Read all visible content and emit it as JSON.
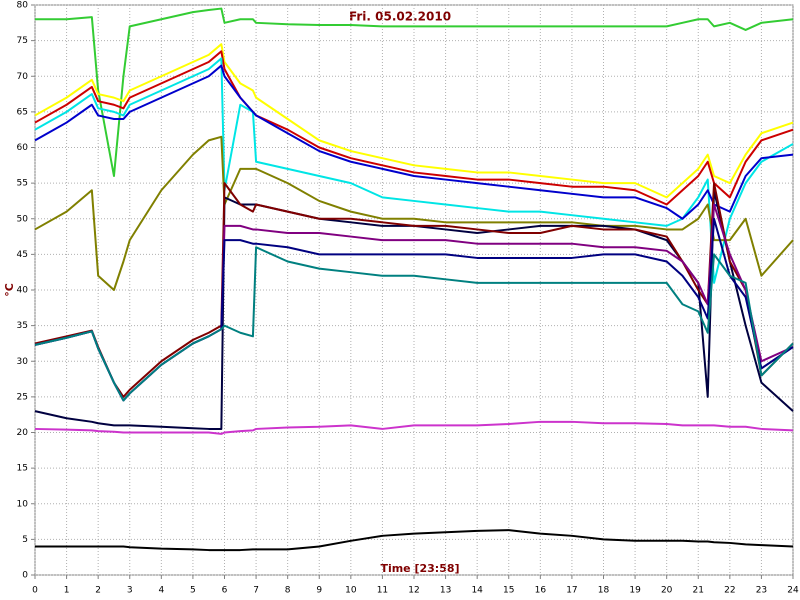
{
  "chart_data": {
    "type": "line",
    "title": "Fri. 05.02.2010",
    "xlabel": "Time [23:58]",
    "ylabel": "°C",
    "x": [
      0,
      1,
      1.8,
      2,
      2.5,
      2.8,
      3,
      4,
      5,
      5.5,
      5.9,
      6,
      6.5,
      6.9,
      7,
      8,
      9,
      10,
      11,
      12,
      13,
      14,
      15,
      16,
      17,
      18,
      19,
      20,
      20.5,
      21,
      21.3,
      21.5,
      22,
      22.5,
      23,
      24
    ],
    "xlim": [
      0,
      24
    ],
    "xticks": [
      0,
      1,
      2,
      3,
      4,
      5,
      6,
      7,
      8,
      9,
      10,
      11,
      12,
      13,
      14,
      15,
      16,
      17,
      18,
      19,
      20,
      21,
      22,
      23,
      24
    ],
    "ylim": [
      0,
      80
    ],
    "yticks": [
      0,
      5,
      10,
      15,
      20,
      25,
      30,
      35,
      40,
      45,
      50,
      55,
      60,
      65,
      70,
      75,
      80
    ],
    "grid": true,
    "series": [
      {
        "color": "#33cc33",
        "values": [
          78,
          78,
          78.3,
          68,
          56,
          70,
          77,
          78,
          79,
          79.3,
          79.5,
          77.5,
          78,
          78,
          77.5,
          77.3,
          77.2,
          77.2,
          77,
          77,
          77,
          77,
          77,
          77,
          77,
          77,
          77,
          77,
          77.5,
          78,
          78,
          77,
          77.5,
          76.5,
          77.5,
          78
        ]
      },
      {
        "color": "#ffff00",
        "values": [
          64.5,
          67,
          69.5,
          67.5,
          67,
          66.5,
          68,
          70,
          72,
          73,
          74.5,
          72,
          69,
          68,
          67,
          64,
          61,
          59.5,
          58.5,
          57.5,
          57,
          56.5,
          56.5,
          56,
          55.5,
          55,
          55,
          53,
          55,
          57,
          59,
          56,
          55,
          59,
          62,
          63.5
        ]
      },
      {
        "color": "#cc0000",
        "values": [
          63.5,
          66,
          68.5,
          66.5,
          66,
          65.5,
          67,
          69,
          71,
          72,
          73.5,
          71,
          67,
          65,
          64.5,
          62.5,
          60,
          58.5,
          57.5,
          56.5,
          56,
          55.5,
          55.5,
          55,
          54.5,
          54.5,
          54,
          52,
          54,
          56,
          58,
          55,
          53,
          58,
          61,
          62.5
        ]
      },
      {
        "color": "#00e5e5",
        "values": [
          62.5,
          65,
          67.5,
          65.5,
          65,
          64.5,
          66,
          68,
          70,
          71,
          72.5,
          54,
          66,
          65,
          58,
          57,
          56,
          55,
          53,
          52.5,
          52,
          51.5,
          51,
          51,
          50.5,
          50,
          49.5,
          49,
          50,
          53,
          55.5,
          41,
          50,
          55,
          58,
          60.5
        ]
      },
      {
        "color": "#0000cc",
        "values": [
          61,
          63.5,
          66,
          64.5,
          64,
          64,
          65,
          67,
          69,
          70,
          71.5,
          70,
          67,
          65,
          64.5,
          62,
          59.5,
          58,
          57,
          56,
          55.5,
          55,
          54.5,
          54,
          53.5,
          53,
          53,
          51.5,
          50,
          52,
          54,
          52,
          51,
          56,
          58.5,
          59
        ]
      },
      {
        "color": "#808000",
        "values": [
          48.5,
          51,
          54,
          42,
          40,
          44,
          47,
          54,
          59,
          61,
          61.5,
          52,
          57,
          57,
          57,
          55,
          52.5,
          51,
          50,
          50,
          49.5,
          49.5,
          49.5,
          49.5,
          49.5,
          49,
          49,
          48.5,
          48.5,
          50,
          52,
          47,
          47,
          50,
          42,
          47
        ]
      },
      {
        "color": "#000040",
        "values": [
          23,
          22,
          21.5,
          21.3,
          21,
          21,
          21,
          20.8,
          20.6,
          20.5,
          20.5,
          53,
          52,
          52,
          52,
          51,
          50,
          49.5,
          49,
          49,
          48.5,
          48,
          48.5,
          49,
          49,
          49,
          48.5,
          47,
          44,
          41,
          25,
          54,
          44,
          35,
          27,
          23
        ]
      },
      {
        "color": "#800000",
        "values": [
          32.5,
          33.5,
          34.3,
          32,
          27,
          25,
          26,
          30,
          33,
          34,
          35,
          55,
          52,
          51,
          52,
          51,
          50,
          50,
          49.5,
          49,
          49,
          48.5,
          48,
          48,
          49,
          48.5,
          48.5,
          47.5,
          44,
          40,
          38,
          55,
          44,
          40,
          28,
          32.5
        ]
      },
      {
        "color": "#800080",
        "values": [
          32.3,
          33.3,
          34.2,
          31.8,
          27,
          24.5,
          25.5,
          29.5,
          32.5,
          33.5,
          34.5,
          49,
          49,
          48.5,
          48.5,
          48,
          48,
          47.5,
          47,
          47,
          47,
          46.5,
          46.5,
          46.5,
          46.5,
          46,
          46,
          45.5,
          44,
          41,
          38,
          52,
          45,
          40,
          30,
          32
        ]
      },
      {
        "color": "#000080",
        "values": [
          32.3,
          33.3,
          34.2,
          31.8,
          27,
          24.5,
          25.5,
          29.5,
          32.5,
          33.5,
          34.5,
          47,
          47,
          46.5,
          46.5,
          46,
          45,
          45,
          45,
          45,
          45,
          44.5,
          44.5,
          44.5,
          44.5,
          45,
          45,
          44,
          42,
          39,
          36,
          50,
          42,
          39,
          29,
          32
        ]
      },
      {
        "color": "#008080",
        "values": [
          32.3,
          33.3,
          34.2,
          31.8,
          27,
          24.5,
          25.5,
          29.5,
          32.5,
          33.5,
          34.5,
          35,
          34,
          33.5,
          46,
          44,
          43,
          42.5,
          42,
          42,
          41.5,
          41,
          41,
          41,
          41,
          41,
          41,
          41,
          38,
          37,
          34,
          45,
          42,
          41,
          28,
          32.5
        ]
      },
      {
        "color": "#cc33cc",
        "values": [
          20.5,
          20.4,
          20.3,
          20.2,
          20.1,
          20,
          20,
          20,
          20,
          20,
          19.8,
          20,
          20.2,
          20.3,
          20.5,
          20.7,
          20.8,
          21,
          20.5,
          21,
          21,
          21,
          21.2,
          21.5,
          21.5,
          21.3,
          21.3,
          21.2,
          21,
          21,
          21,
          21,
          20.8,
          20.8,
          20.5,
          20.3
        ]
      },
      {
        "color": "#000000",
        "values": [
          4,
          4,
          4,
          4,
          4,
          4,
          3.9,
          3.7,
          3.6,
          3.5,
          3.5,
          3.5,
          3.5,
          3.6,
          3.6,
          3.6,
          4,
          4.8,
          5.5,
          5.8,
          6,
          6.2,
          6.3,
          5.8,
          5.5,
          5,
          4.8,
          4.8,
          4.8,
          4.7,
          4.7,
          4.6,
          4.5,
          4.3,
          4.2,
          4
        ]
      }
    ]
  }
}
